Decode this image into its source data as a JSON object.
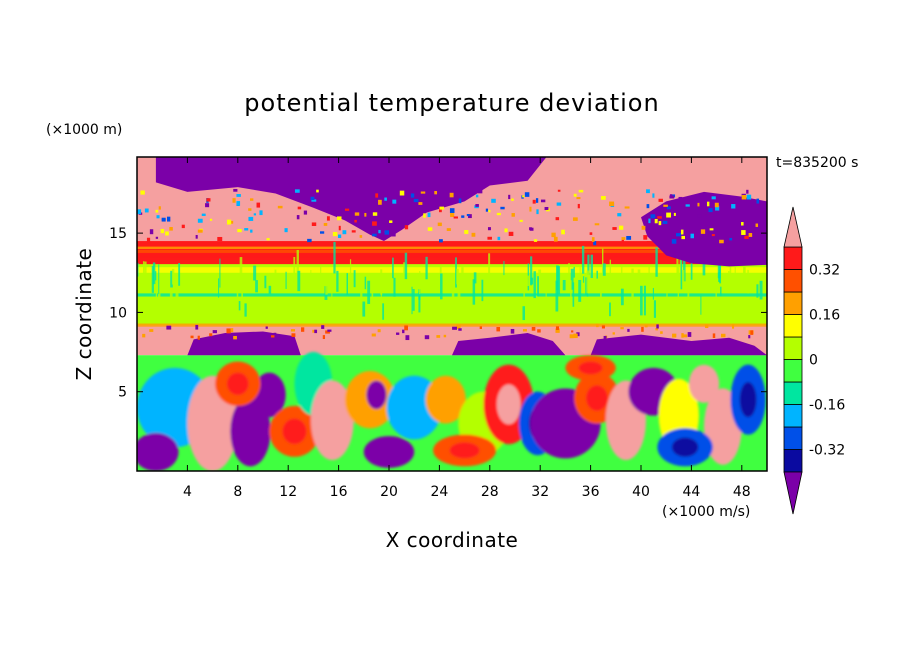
{
  "chart_data": {
    "type": "heatmap",
    "title": "potential temperature deviation",
    "xlabel": "X coordinate",
    "ylabel": "Z coordinate",
    "x_unit": "(×1000 m/s)",
    "y_unit": "(×1000 m)",
    "time_label": "t=835200 s",
    "xlim": [
      0,
      50
    ],
    "ylim": [
      0,
      19.8
    ],
    "x_ticks": [
      4,
      8,
      12,
      16,
      20,
      24,
      28,
      32,
      36,
      40,
      44,
      48
    ],
    "y_ticks": [
      5,
      10,
      15
    ],
    "colorbar": {
      "levels": [
        -0.4,
        -0.32,
        -0.24,
        -0.16,
        -0.08,
        0,
        0.08,
        0.16,
        0.24,
        0.32,
        0.4
      ],
      "colors": [
        "#7b00a8",
        "#0a0aa0",
        "#0050e8",
        "#00b4ff",
        "#00e6a0",
        "#40ff40",
        "#b4ff00",
        "#ffff00",
        "#ffa000",
        "#ff5000",
        "#ff1a1a",
        "#f5a0a0"
      ],
      "labels": [
        "0.32",
        "0.16",
        "0",
        "-0.16",
        "-0.32"
      ],
      "label_values": [
        0.32,
        0.16,
        0,
        -0.16,
        -0.32
      ]
    },
    "layers": [
      {
        "z_range": [
          14.5,
          19.8
        ],
        "value": 0.45,
        "note": "upper layer mostly positive with large negative region"
      },
      {
        "z_range": [
          13.0,
          14.5
        ],
        "value": 0.34
      },
      {
        "z_range": [
          9.2,
          13.0
        ],
        "value": 0.05
      },
      {
        "z_range": [
          7.3,
          9.2
        ],
        "value": 0.45
      },
      {
        "z_range": [
          0,
          7.3
        ],
        "value": 0.0,
        "note": "turbulent eddies"
      }
    ]
  }
}
